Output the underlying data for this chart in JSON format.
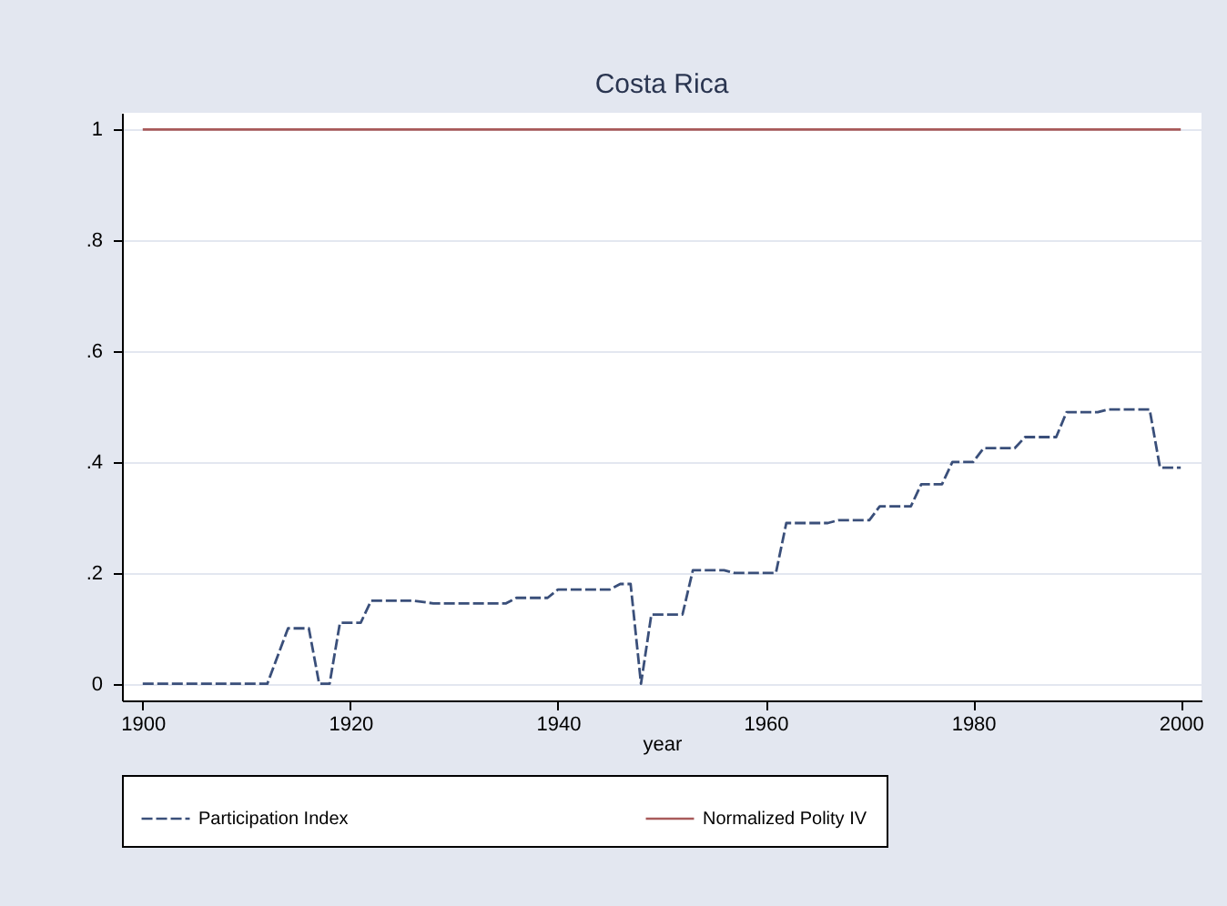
{
  "chart_data": {
    "type": "line",
    "title": "Costa Rica",
    "xlabel": "year",
    "series": [
      {
        "name": "Participation Index",
        "color": "#3a4f7a",
        "line_style": "dashed",
        "x": [
          1900,
          1912,
          1914,
          1916,
          1917,
          1918,
          1919,
          1921,
          1922,
          1926,
          1928,
          1935,
          1936,
          1939,
          1940,
          1945,
          1946,
          1947,
          1948,
          1949,
          1952,
          1953,
          1956,
          1957,
          1961,
          1962,
          1966,
          1967,
          1970,
          1971,
          1974,
          1975,
          1977,
          1978,
          1980,
          1981,
          1984,
          1985,
          1988,
          1989,
          1992,
          1993,
          1997,
          1998,
          2000
        ],
        "values": [
          0,
          0,
          0.1,
          0.1,
          0,
          0,
          0.11,
          0.11,
          0.15,
          0.15,
          0.145,
          0.145,
          0.155,
          0.155,
          0.17,
          0.17,
          0.18,
          0.18,
          0,
          0.125,
          0.125,
          0.205,
          0.205,
          0.2,
          0.2,
          0.29,
          0.29,
          0.295,
          0.295,
          0.32,
          0.32,
          0.36,
          0.36,
          0.4,
          0.4,
          0.425,
          0.425,
          0.445,
          0.445,
          0.49,
          0.49,
          0.495,
          0.495,
          0.39,
          0.39
        ]
      },
      {
        "name": "Normalized Polity IV",
        "color": "#a85a5a",
        "line_style": "solid",
        "x": [
          1900,
          2000
        ],
        "values": [
          1,
          1
        ]
      }
    ],
    "xlim": [
      1898,
      2002
    ],
    "ylim": [
      -0.03,
      1.03
    ],
    "xticks": [
      1900,
      1920,
      1940,
      1960,
      1980,
      2000
    ],
    "yticks": [
      0,
      {
        "value": 0.2,
        "label": ".2"
      },
      {
        "value": 0.4,
        "label": ".4"
      },
      {
        "value": 0.6,
        "label": ".6"
      },
      {
        "value": 0.8,
        "label": ".8"
      },
      1
    ],
    "grid": "y",
    "legend": "bottom"
  }
}
